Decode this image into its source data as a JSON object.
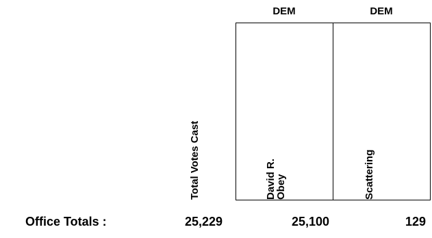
{
  "columns": {
    "total_votes_label": "Total Votes Cast",
    "candidates": [
      {
        "party": "DEM",
        "name_line1": "David R.",
        "name_line2": "Obey"
      },
      {
        "party": "DEM",
        "name": "Scattering"
      }
    ]
  },
  "totals": {
    "label": "Office Totals :",
    "total_votes": "25,229",
    "candidate_values": [
      "25,100",
      "129"
    ]
  }
}
